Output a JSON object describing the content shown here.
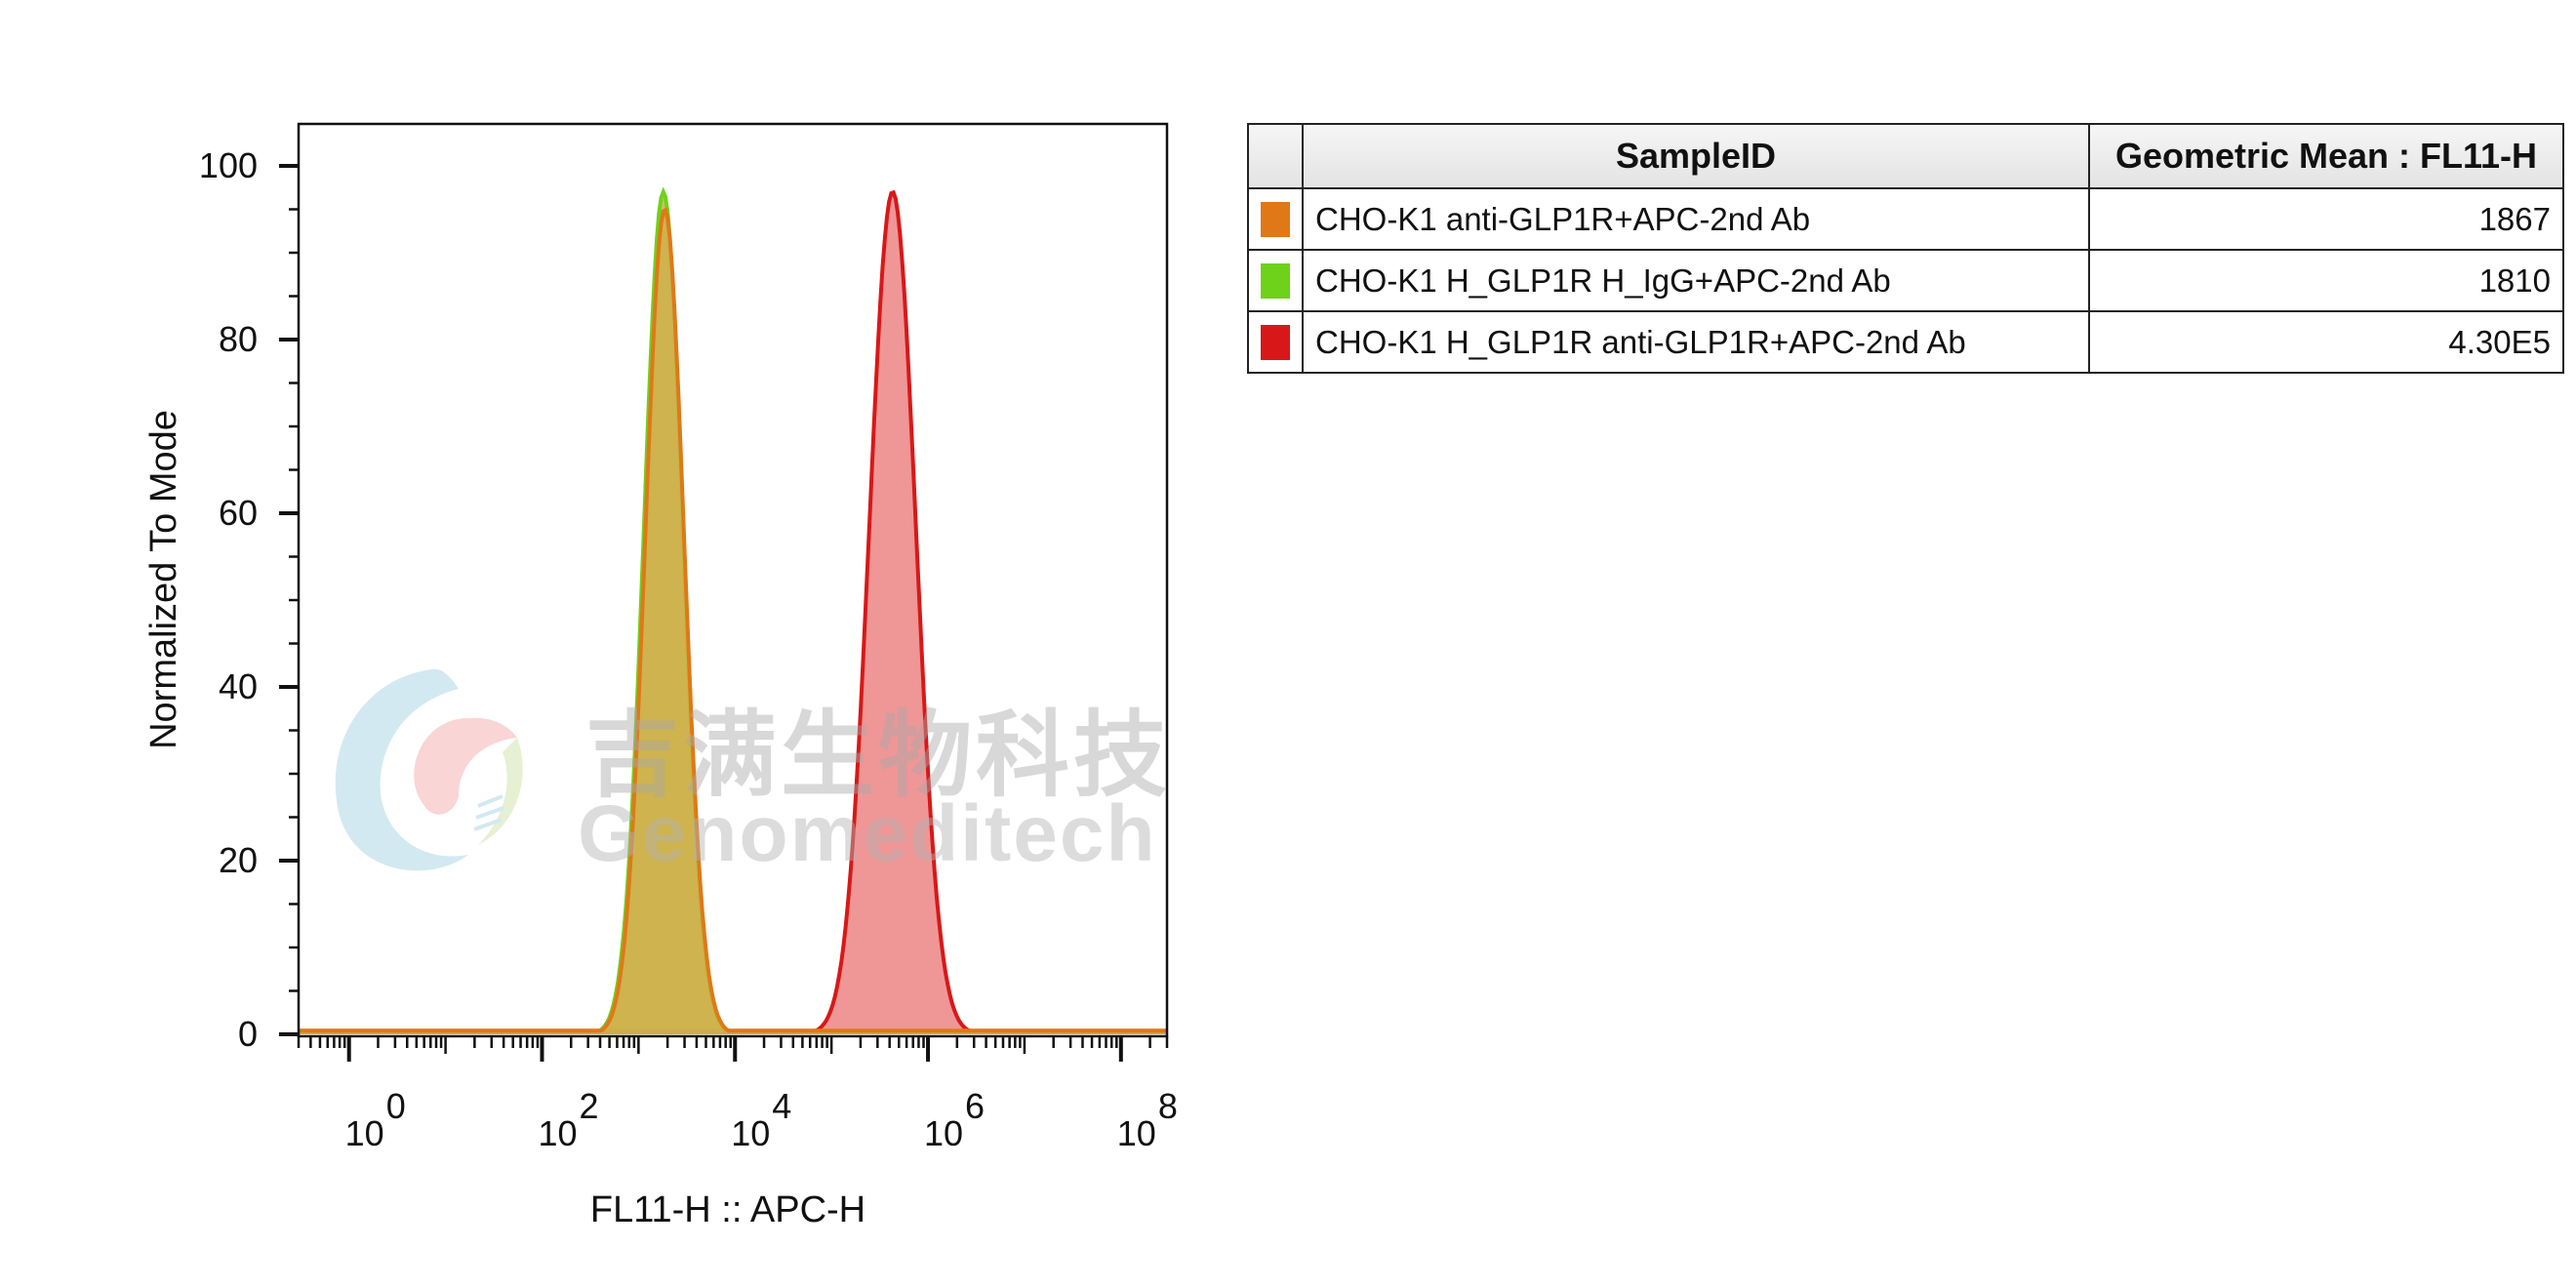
{
  "chart_data": {
    "type": "histogram",
    "xlabel": "FL11-H :: APC-H",
    "ylabel": "Normalized To Mode",
    "xscale": "log",
    "xlim": [
      0.3,
      300000000
    ],
    "ylim": [
      0,
      100
    ],
    "x_ticks": [
      {
        "base": "10",
        "exp": "0",
        "value": 1
      },
      {
        "base": "10",
        "exp": "2",
        "value": 100
      },
      {
        "base": "10",
        "exp": "4",
        "value": 10000
      },
      {
        "base": "10",
        "exp": "6",
        "value": 1000000
      },
      {
        "base": "10",
        "exp": "8",
        "value": 100000000
      }
    ],
    "y_ticks": [
      0,
      20,
      40,
      60,
      80,
      100
    ],
    "series": [
      {
        "name": "CHO-K1 anti-GLP1R+APC-2nd Ab",
        "color": "#e07818",
        "fill": "#cdb24a",
        "peak_x": 1867,
        "peak_y": 95,
        "log_width": 0.2
      },
      {
        "name": "CHO-K1 H_GLP1R H_IgG+APC-2nd Ab",
        "color": "#6fd21a",
        "fill": "#cdb24a",
        "peak_x": 1810,
        "peak_y": 97,
        "log_width": 0.2
      },
      {
        "name": "CHO-K1 H_GLP1R anti-GLP1R+APC-2nd Ab",
        "color": "#d81818",
        "fill": "#ee9090",
        "peak_x": 430000,
        "peak_y": 97,
        "log_width": 0.24
      }
    ]
  },
  "legend_table": {
    "headers": [
      "",
      "SampleID",
      "Geometric Mean : FL11-H"
    ],
    "rows": [
      {
        "color": "#e07818",
        "sample": "CHO-K1 anti-GLP1R+APC-2nd Ab",
        "mean": "1867"
      },
      {
        "color": "#6fd21a",
        "sample": "CHO-K1 H_GLP1R H_IgG+APC-2nd Ab",
        "mean": "1810"
      },
      {
        "color": "#d81818",
        "sample": "CHO-K1 H_GLP1R anti-GLP1R+APC-2nd Ab",
        "mean": "4.30E5"
      }
    ]
  },
  "watermark": {
    "chinese": "吉满生物科技",
    "english": "Genomeditech"
  }
}
